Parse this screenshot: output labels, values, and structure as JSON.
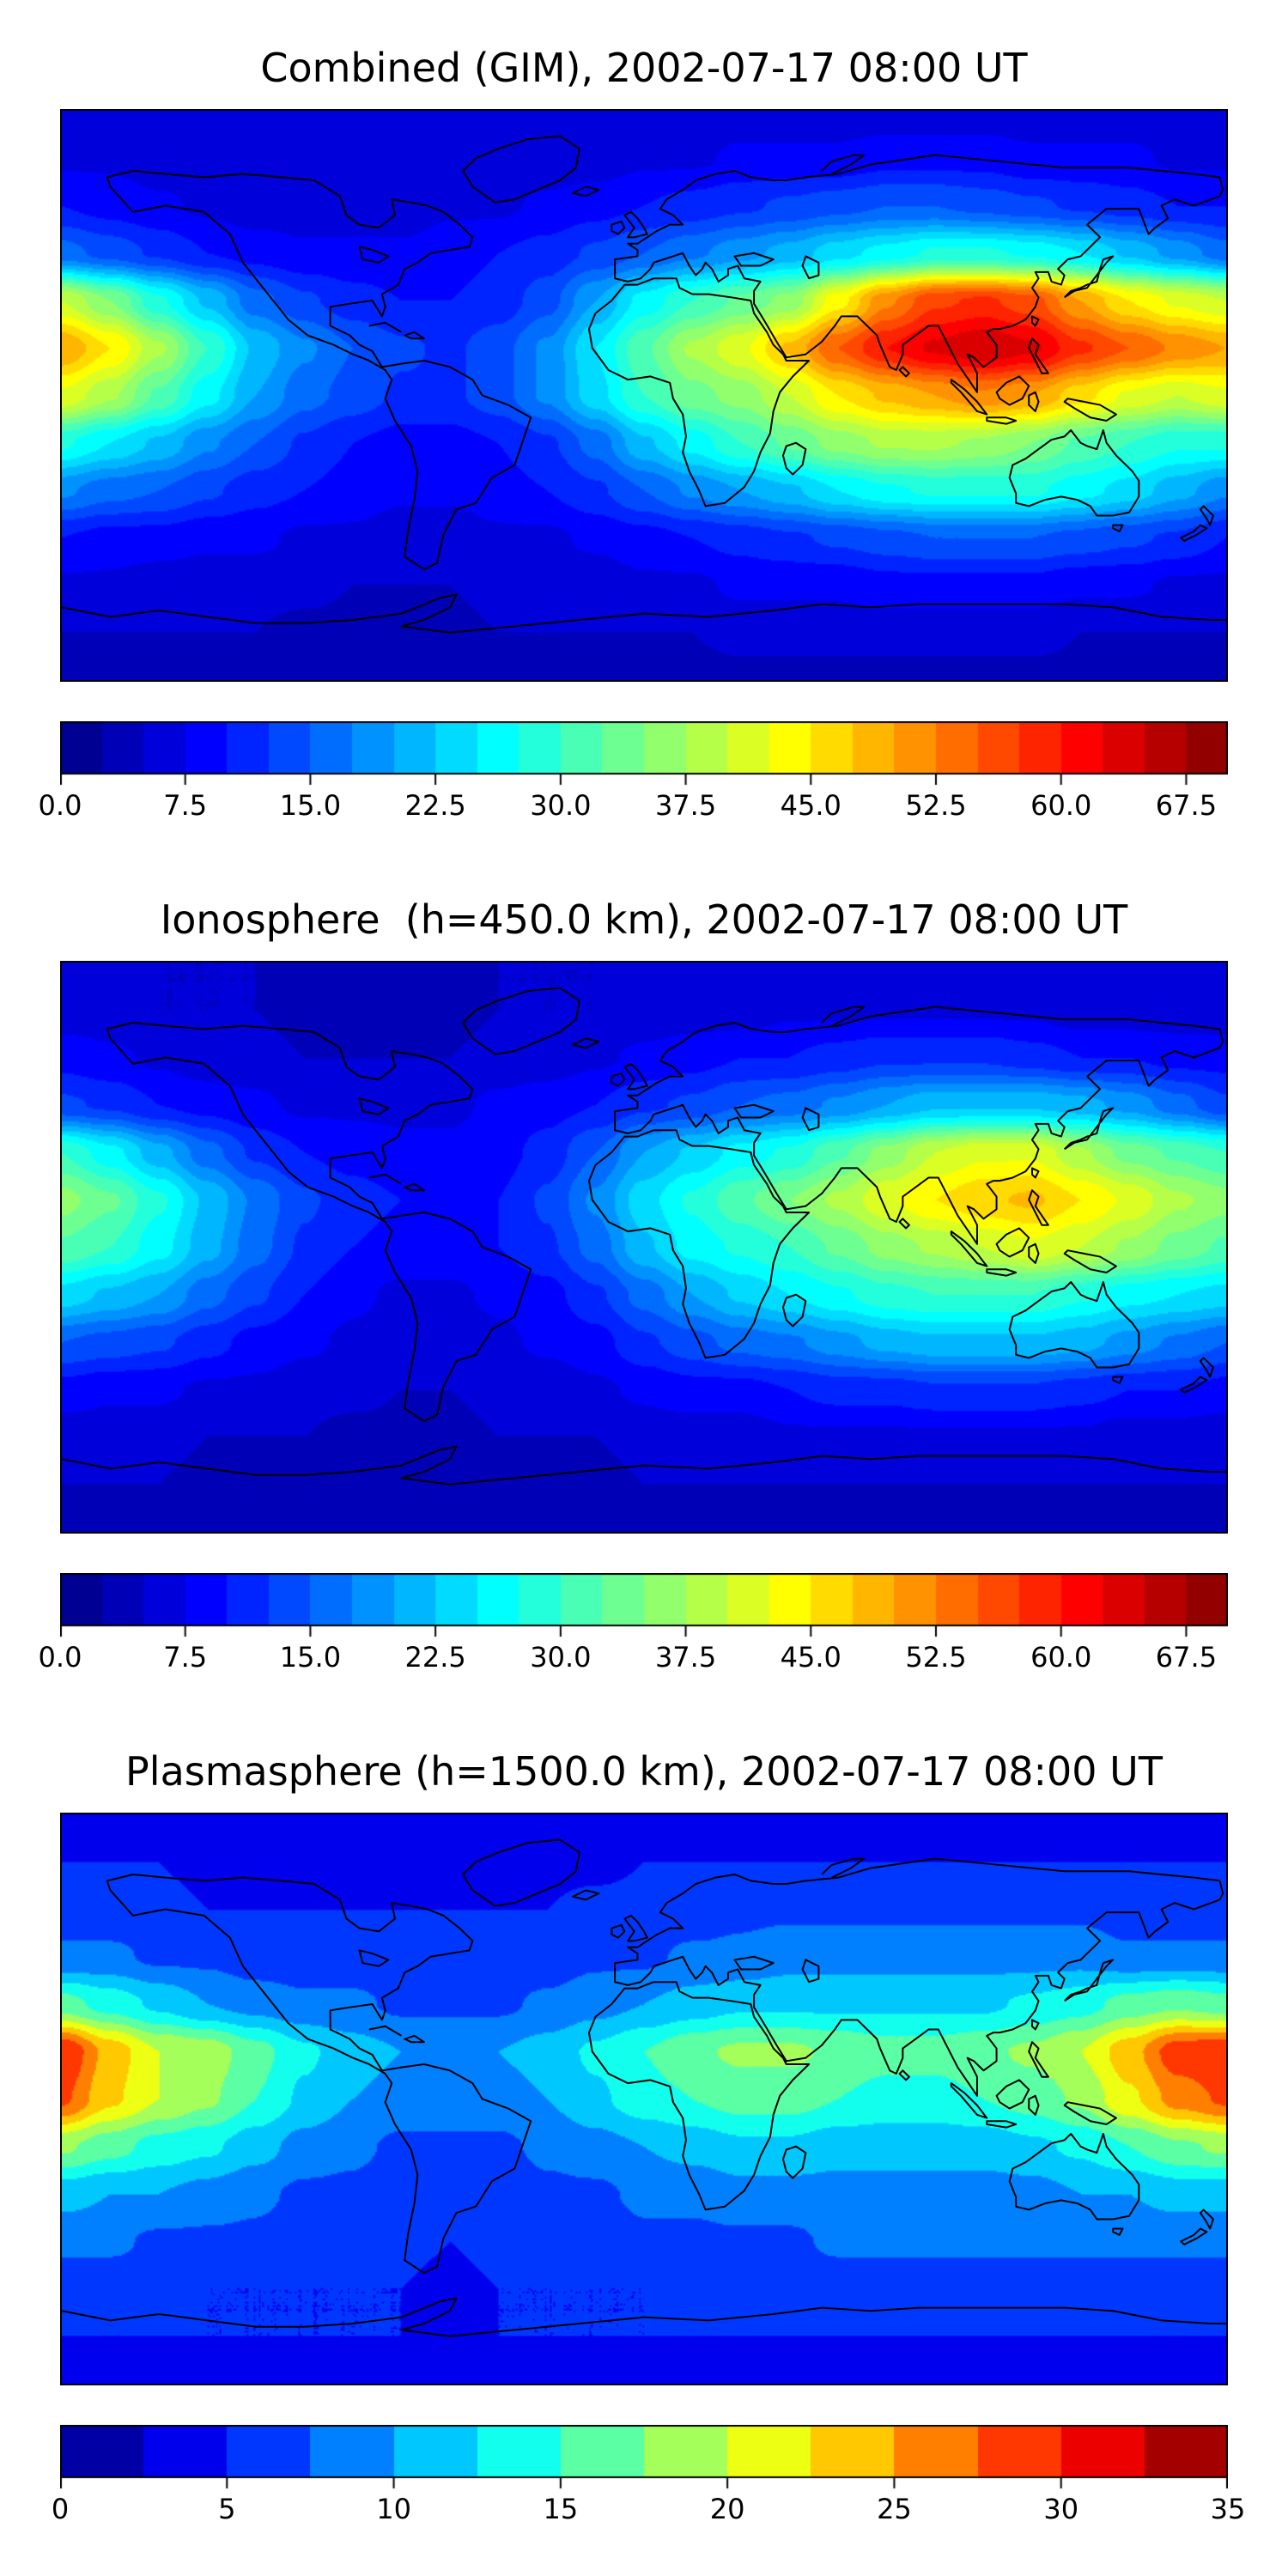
{
  "chart_data": [
    {
      "type": "heatmap",
      "title": "Combined (GIM), 2002-07-17 08:00 UT",
      "colormap": "jet",
      "vmin": 0,
      "vmax": 70,
      "level_step": 2.5,
      "colorbar_tick_labels": [
        "0.0",
        "7.5",
        "15.0",
        "22.5",
        "30.0",
        "37.5",
        "45.0",
        "52.5",
        "60.0",
        "67.5"
      ],
      "colorbar_tick_values": [
        0,
        7.5,
        15,
        22.5,
        30,
        37.5,
        45,
        52.5,
        60,
        67.5
      ],
      "grid": {
        "lon_min": -180,
        "lon_max": 180,
        "lon_step": 15,
        "lat_order": "rows from lat=90 to lat=-90, step 15",
        "values": [
          [
            6,
            6,
            6,
            6,
            6,
            6,
            6,
            6,
            6,
            6,
            6,
            6,
            6,
            6,
            6,
            6,
            6,
            6,
            6,
            6,
            6,
            6,
            6,
            6,
            6
          ],
          [
            7,
            7,
            6,
            6,
            6,
            5,
            5,
            5,
            5,
            6,
            6,
            6,
            7,
            7,
            8,
            8,
            8,
            9,
            9,
            9,
            8,
            8,
            8,
            7,
            7
          ],
          [
            10,
            9,
            8,
            7,
            6,
            6,
            6,
            6,
            7,
            7,
            8,
            9,
            10,
            11,
            12,
            13,
            14,
            15,
            15,
            14,
            13,
            12,
            11,
            10,
            10
          ],
          [
            16,
            14,
            12,
            10,
            9,
            8,
            8,
            8,
            9,
            10,
            11,
            13,
            15,
            17,
            19,
            21,
            24,
            26,
            28,
            28,
            27,
            25,
            22,
            19,
            16
          ],
          [
            40,
            35,
            28,
            22,
            16,
            13,
            11,
            10,
            10,
            11,
            14,
            20,
            26,
            30,
            33,
            36,
            44,
            52,
            57,
            58,
            56,
            50,
            45,
            42,
            40
          ],
          [
            50,
            45,
            38,
            30,
            22,
            18,
            15,
            13,
            12,
            14,
            18,
            25,
            32,
            38,
            42,
            48,
            55,
            60,
            63,
            65,
            63,
            58,
            55,
            52,
            50
          ],
          [
            42,
            38,
            32,
            26,
            20,
            16,
            14,
            12,
            12,
            14,
            18,
            24,
            30,
            34,
            36,
            40,
            45,
            48,
            50,
            52,
            50,
            46,
            42,
            40,
            42
          ],
          [
            28,
            25,
            22,
            18,
            15,
            12,
            10,
            9,
            9,
            10,
            12,
            16,
            22,
            26,
            30,
            33,
            36,
            38,
            38,
            37,
            35,
            32,
            30,
            28,
            28
          ],
          [
            18,
            16,
            15,
            13,
            11,
            10,
            9,
            8,
            8,
            9,
            10,
            12,
            15,
            18,
            20,
            22,
            25,
            27,
            28,
            28,
            28,
            26,
            24,
            21,
            18
          ],
          [
            10,
            9,
            9,
            8,
            8,
            7,
            7,
            6,
            6,
            7,
            7,
            8,
            9,
            10,
            11,
            12,
            13,
            14,
            15,
            15,
            15,
            14,
            13,
            12,
            10
          ],
          [
            7,
            7,
            6,
            6,
            6,
            6,
            5,
            5,
            5,
            6,
            6,
            6,
            7,
            7,
            8,
            8,
            8,
            9,
            9,
            9,
            9,
            8,
            8,
            7,
            7
          ],
          [
            5,
            5,
            5,
            5,
            5,
            4,
            4,
            4,
            4,
            5,
            5,
            5,
            5,
            5,
            6,
            6,
            6,
            6,
            6,
            6,
            6,
            5,
            5,
            5,
            5
          ],
          [
            4,
            4,
            4,
            4,
            4,
            4,
            4,
            4,
            4,
            4,
            4,
            4,
            4,
            4,
            4,
            4,
            4,
            4,
            4,
            4,
            4,
            4,
            4,
            4,
            4
          ]
        ]
      }
    },
    {
      "type": "heatmap",
      "title": "Ionosphere  (h=450.0 km), 2002-07-17 08:00 UT",
      "colormap": "jet",
      "vmin": 0,
      "vmax": 70,
      "level_step": 2.5,
      "colorbar_tick_labels": [
        "0.0",
        "7.5",
        "15.0",
        "22.5",
        "30.0",
        "37.5",
        "45.0",
        "52.5",
        "60.0",
        "67.5"
      ],
      "colorbar_tick_values": [
        0,
        7.5,
        15,
        22.5,
        30,
        37.5,
        45,
        52.5,
        60,
        67.5
      ],
      "grid": {
        "lon_min": -180,
        "lon_max": 180,
        "lon_step": 15,
        "lat_order": "rows from lat=90 to lat=-90, step 15",
        "values": [
          [
            5,
            5,
            5,
            5,
            5,
            5,
            5,
            5,
            5,
            5,
            5,
            5,
            5,
            5,
            5,
            5,
            5,
            5,
            5,
            5,
            5,
            5,
            5,
            5,
            5
          ],
          [
            6,
            6,
            5,
            5,
            5,
            4,
            4,
            4,
            4,
            5,
            5,
            5,
            6,
            6,
            6,
            7,
            7,
            7,
            7,
            7,
            7,
            6,
            6,
            6,
            6
          ],
          [
            9,
            8,
            7,
            6,
            6,
            5,
            5,
            5,
            5,
            6,
            6,
            7,
            8,
            9,
            10,
            10,
            11,
            12,
            12,
            12,
            11,
            10,
            10,
            9,
            9
          ],
          [
            13,
            12,
            10,
            9,
            8,
            7,
            7,
            7,
            7,
            8,
            9,
            10,
            12,
            13,
            15,
            16,
            18,
            20,
            22,
            22,
            22,
            21,
            19,
            16,
            13
          ],
          [
            30,
            26,
            21,
            16,
            12,
            10,
            9,
            8,
            8,
            9,
            11,
            15,
            20,
            23,
            26,
            28,
            32,
            36,
            40,
            42,
            42,
            38,
            34,
            32,
            30
          ],
          [
            36,
            33,
            28,
            22,
            17,
            13,
            11,
            10,
            9,
            10,
            13,
            18,
            24,
            28,
            32,
            35,
            38,
            42,
            45,
            47,
            48,
            45,
            42,
            38,
            36
          ],
          [
            32,
            30,
            26,
            21,
            16,
            12,
            10,
            9,
            9,
            10,
            12,
            16,
            22,
            26,
            28,
            30,
            33,
            36,
            38,
            40,
            42,
            40,
            37,
            34,
            32
          ],
          [
            24,
            22,
            20,
            16,
            13,
            10,
            8,
            7,
            7,
            8,
            9,
            12,
            16,
            20,
            23,
            25,
            27,
            29,
            30,
            30,
            30,
            28,
            26,
            25,
            24
          ],
          [
            15,
            14,
            13,
            11,
            9,
            8,
            7,
            6,
            6,
            7,
            8,
            9,
            12,
            14,
            16,
            17,
            19,
            21,
            22,
            22,
            22,
            21,
            19,
            17,
            15
          ],
          [
            9,
            8,
            8,
            7,
            7,
            6,
            6,
            5,
            5,
            6,
            6,
            7,
            8,
            9,
            9,
            10,
            11,
            11,
            12,
            12,
            12,
            11,
            10,
            10,
            9
          ],
          [
            6,
            6,
            6,
            5,
            5,
            5,
            4,
            4,
            4,
            5,
            5,
            5,
            6,
            6,
            6,
            7,
            7,
            7,
            7,
            7,
            7,
            7,
            6,
            6,
            6
          ],
          [
            5,
            5,
            5,
            4,
            4,
            4,
            4,
            4,
            4,
            4,
            4,
            4,
            5,
            5,
            5,
            5,
            5,
            5,
            5,
            5,
            5,
            5,
            5,
            5,
            5
          ],
          [
            4,
            4,
            4,
            4,
            4,
            4,
            4,
            4,
            4,
            4,
            4,
            4,
            4,
            4,
            4,
            4,
            4,
            4,
            4,
            4,
            4,
            4,
            4,
            4,
            4
          ]
        ]
      }
    },
    {
      "type": "heatmap",
      "title": "Plasmasphere (h=1500.0 km), 2002-07-17 08:00 UT",
      "colormap": "jet",
      "vmin": 0,
      "vmax": 35,
      "level_step": 2.5,
      "colorbar_tick_labels": [
        "0",
        "5",
        "10",
        "15",
        "20",
        "25",
        "30",
        "35"
      ],
      "colorbar_tick_values": [
        0,
        5,
        10,
        15,
        20,
        25,
        30,
        35
      ],
      "grid": {
        "lon_min": -180,
        "lon_max": 180,
        "lon_step": 15,
        "lat_order": "rows from lat=90 to lat=-90, step 15",
        "values": [
          [
            4,
            4,
            4,
            4,
            4,
            4,
            4,
            4,
            4,
            4,
            4,
            4,
            4,
            4,
            4,
            4,
            4,
            4,
            4,
            4,
            4,
            4,
            4,
            4,
            4
          ],
          [
            5,
            5,
            5,
            4,
            4,
            4,
            4,
            4,
            4,
            4,
            4,
            4,
            5,
            5,
            5,
            5,
            5,
            5,
            5,
            5,
            5,
            5,
            5,
            5,
            5
          ],
          [
            6,
            6,
            6,
            5,
            5,
            5,
            5,
            5,
            5,
            5,
            5,
            6,
            6,
            6,
            7,
            7,
            7,
            7,
            7,
            7,
            7,
            7,
            6,
            6,
            6
          ],
          [
            8,
            8,
            7,
            7,
            6,
            6,
            6,
            6,
            6,
            6,
            6,
            7,
            7,
            8,
            8,
            9,
            9,
            9,
            9,
            9,
            9,
            9,
            8,
            8,
            8
          ],
          [
            16,
            14,
            12,
            10,
            9,
            8,
            8,
            7,
            7,
            7,
            8,
            9,
            10,
            11,
            12,
            12,
            12,
            12,
            12,
            12,
            13,
            14,
            16,
            17,
            16
          ],
          [
            30,
            24,
            20,
            19,
            16,
            13,
            11,
            10,
            10,
            10,
            11,
            13,
            15,
            17,
            18,
            18,
            17,
            16,
            16,
            17,
            18,
            20,
            24,
            29,
            30
          ],
          [
            28,
            23,
            20,
            18,
            15,
            12,
            10,
            9,
            9,
            9,
            10,
            12,
            14,
            15,
            16,
            16,
            15,
            14,
            14,
            15,
            16,
            18,
            22,
            26,
            28
          ],
          [
            18,
            16,
            14,
            13,
            11,
            9,
            8,
            7,
            7,
            7,
            8,
            9,
            10,
            11,
            12,
            12,
            11,
            11,
            11,
            11,
            12,
            13,
            15,
            17,
            18
          ],
          [
            11,
            10,
            10,
            9,
            8,
            7,
            7,
            6,
            6,
            6,
            7,
            7,
            8,
            8,
            9,
            9,
            9,
            9,
            9,
            9,
            9,
            10,
            10,
            11,
            11
          ],
          [
            8,
            8,
            7,
            7,
            7,
            6,
            6,
            6,
            5,
            6,
            6,
            6,
            7,
            7,
            7,
            7,
            8,
            8,
            8,
            8,
            8,
            8,
            8,
            8,
            8
          ],
          [
            6,
            6,
            6,
            5,
            5,
            5,
            5,
            5,
            4,
            5,
            5,
            5,
            5,
            6,
            6,
            6,
            6,
            6,
            6,
            6,
            6,
            6,
            6,
            6,
            6
          ],
          [
            5,
            5,
            5,
            5,
            5,
            5,
            5,
            5,
            5,
            5,
            5,
            5,
            5,
            5,
            5,
            5,
            5,
            5,
            5,
            5,
            5,
            5,
            5,
            5,
            5
          ],
          [
            4,
            4,
            4,
            4,
            4,
            4,
            4,
            4,
            4,
            4,
            4,
            4,
            4,
            4,
            4,
            4,
            4,
            4,
            4,
            4,
            4,
            4,
            4,
            4,
            4
          ]
        ]
      }
    }
  ],
  "style": {
    "map_border_color": "#000000",
    "coastline_color": "#000000",
    "background": "#ffffff",
    "text_color": "#000000"
  }
}
